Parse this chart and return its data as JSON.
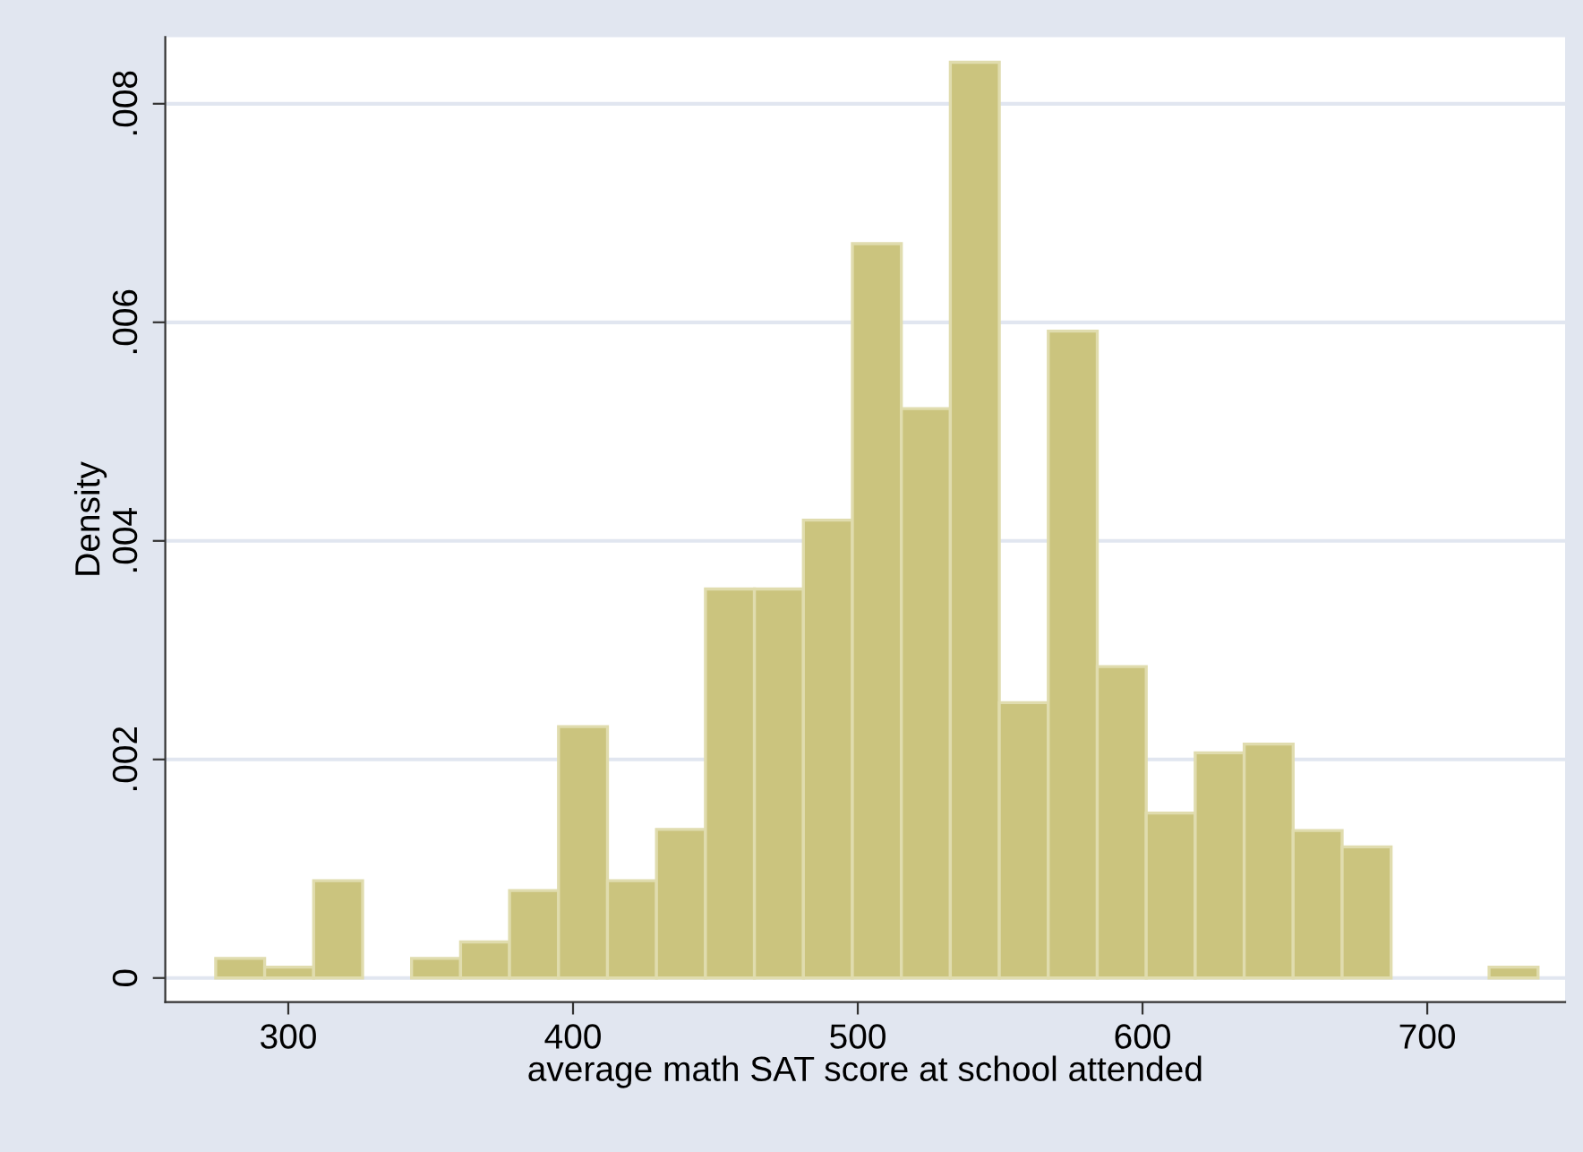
{
  "chart_data": {
    "type": "histogram",
    "xlabel": "average math SAT score at school attended",
    "ylabel": "Density",
    "bins": [
      274.5,
      291.7,
      308.9,
      326.1,
      343.3,
      360.5,
      377.7,
      394.9,
      412.1,
      429.3,
      446.5,
      463.7,
      480.9,
      498.1,
      515.3,
      532.5,
      549.7,
      566.9,
      584.1,
      601.3,
      618.5,
      635.7,
      652.9,
      670.1,
      687.3,
      704.5,
      721.7,
      738.9
    ],
    "values": [
      0.00018,
      0.0001,
      0.00089,
      0,
      0.00018,
      0.00033,
      0.0008,
      0.0023,
      0.00089,
      0.00136,
      0.00356,
      0.00356,
      0.00419,
      0.00672,
      0.00521,
      0.00838,
      0.00252,
      0.00592,
      0.00285,
      0.00151,
      0.00206,
      0.00214,
      0.00135,
      0.0012,
      0,
      0,
      0.0001
    ],
    "color": "#cbc47e",
    "xlim": [
      256.8,
      748.4
    ],
    "ylim": [
      -0.00022,
      0.00861
    ],
    "xticks": [
      300,
      400,
      500,
      600,
      700
    ],
    "yticks": [
      {
        "value": 0,
        "label": "0"
      },
      {
        "value": 0.002,
        "label": ".002"
      },
      {
        "value": 0.004,
        "label": ".004"
      },
      {
        "value": 0.006,
        "label": ".006"
      },
      {
        "value": 0.008,
        "label": ".008"
      }
    ],
    "grid": "y"
  }
}
